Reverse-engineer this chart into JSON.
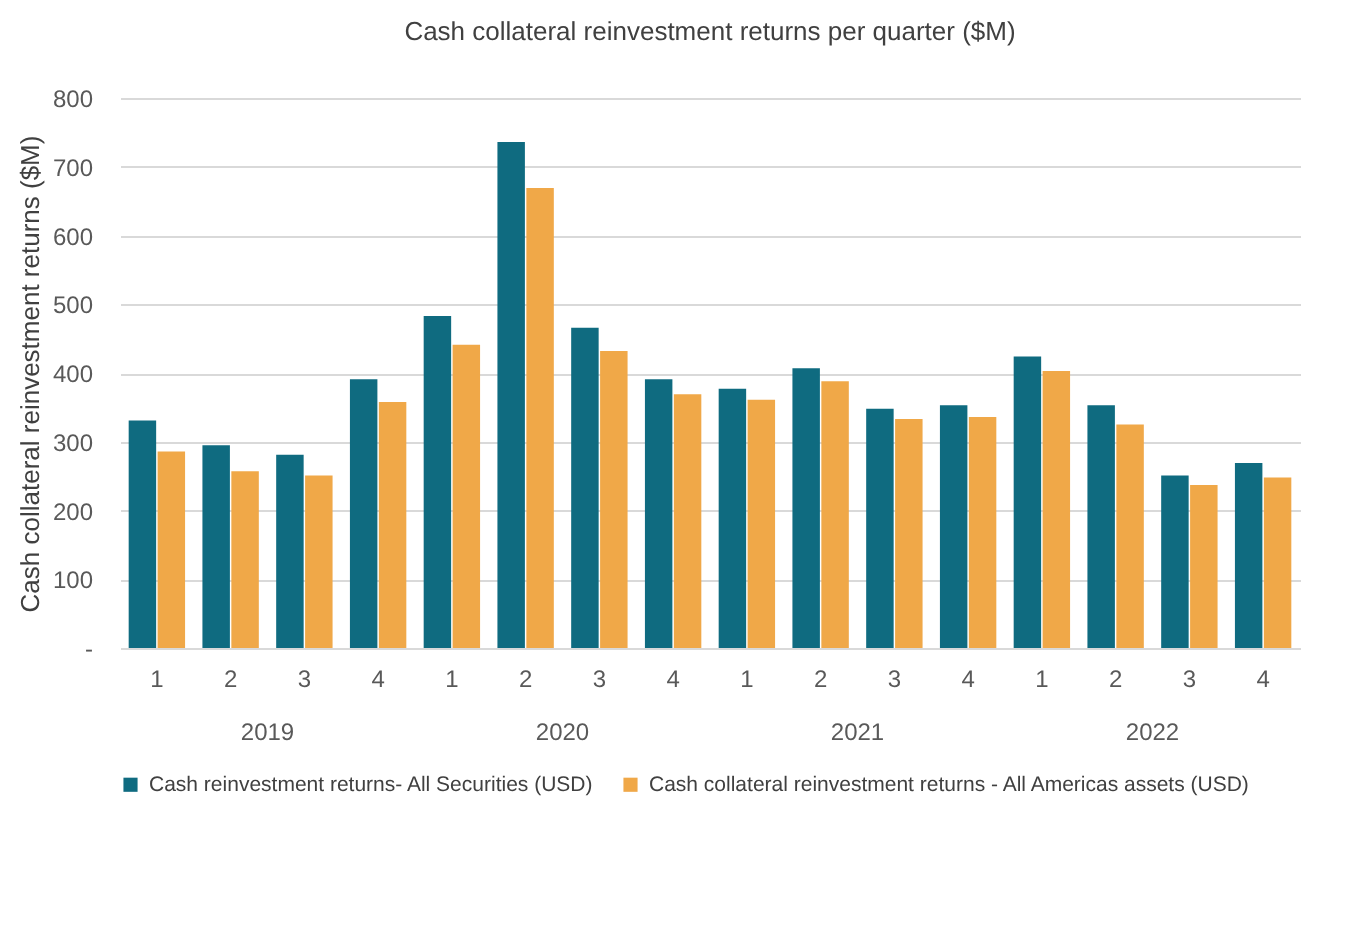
{
  "chart_data": {
    "type": "bar",
    "title": "Cash collateral reinvestment returns per quarter ($M)",
    "ylabel": "Cash collateral reinvestment returns ($M)",
    "categories": [
      "1",
      "2",
      "3",
      "4",
      "1",
      "2",
      "3",
      "4",
      "1",
      "2",
      "3",
      "4",
      "1",
      "2",
      "3",
      "4"
    ],
    "annotations": [
      "2019",
      "2020",
      "2021",
      "2022"
    ],
    "series": [
      {
        "name": "Cash reinvestment returns-  All Securities (USD)",
        "color": "#0f6b80",
        "values": [
          331,
          295,
          281,
          391,
          483,
          736,
          466,
          391,
          377,
          407,
          348,
          353,
          424,
          353,
          251,
          269
        ]
      },
      {
        "name": "Cash collateral reinvestment returns - All Americas assets (USD)",
        "color": "#f0a848",
        "values": [
          286,
          257,
          251,
          358,
          441,
          669,
          432,
          369,
          361,
          388,
          333,
          336,
          403,
          325,
          237,
          248
        ]
      }
    ],
    "ylim": [
      0,
      800
    ],
    "yticks": [
      {
        "value": 0,
        "label": "-"
      },
      100,
      200,
      300,
      400,
      500,
      600,
      700,
      800
    ],
    "grid": "y",
    "legend": "bottom"
  }
}
